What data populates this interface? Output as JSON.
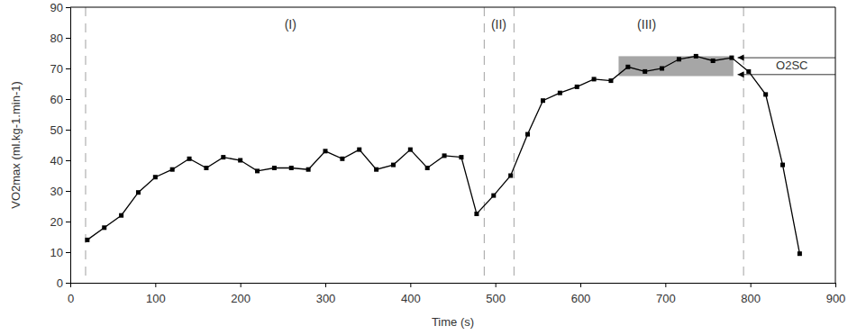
{
  "chart_data": {
    "type": "line",
    "x_label": "Time (s)",
    "y_label": "VO2max (ml.kg-1.min-1)",
    "x": [
      20,
      40,
      60,
      80,
      100,
      120,
      140,
      160,
      180,
      200,
      220,
      240,
      260,
      280,
      300,
      320,
      340,
      360,
      380,
      400,
      420,
      440,
      460,
      478,
      498,
      518,
      538,
      556,
      576,
      596,
      616,
      636,
      656,
      676,
      696,
      716,
      736,
      756,
      778,
      798,
      818,
      838,
      858
    ],
    "values": [
      14,
      18,
      22,
      29.5,
      34.5,
      37,
      40.5,
      37.5,
      41,
      40,
      36.5,
      37.5,
      37.5,
      37,
      43,
      40.5,
      43.5,
      37,
      38.5,
      43.5,
      37.5,
      41.5,
      41,
      22.5,
      28.5,
      35,
      48.5,
      59.5,
      62,
      64,
      66.5,
      66,
      70.5,
      69,
      70,
      73,
      74,
      72.5,
      73.5,
      69,
      61.5,
      38.5,
      9.5
    ],
    "color": "#000000",
    "marker": "square",
    "xlim": [
      0,
      900
    ],
    "xticks": [
      0,
      100,
      200,
      300,
      400,
      500,
      600,
      700,
      800,
      900
    ],
    "ylim": [
      0,
      90
    ],
    "yticks": [
      0,
      10,
      20,
      30,
      40,
      50,
      60,
      70,
      80,
      90
    ],
    "grid": false,
    "annotations": {
      "vlines": [
        18,
        487,
        522,
        792
      ],
      "regions": [
        {
          "text": "(I)",
          "x": 259,
          "y": 84
        },
        {
          "text": "(II)",
          "x": 504,
          "y": 84
        },
        {
          "text": "(III)",
          "x": 678,
          "y": 84
        }
      ],
      "shaded": {
        "x": [
          645,
          780
        ],
        "y": [
          67.5,
          74
        ]
      },
      "bracket": {
        "text": "O2SC",
        "x": [
          785,
          900
        ],
        "y": [
          73.5,
          68
        ]
      }
    }
  }
}
